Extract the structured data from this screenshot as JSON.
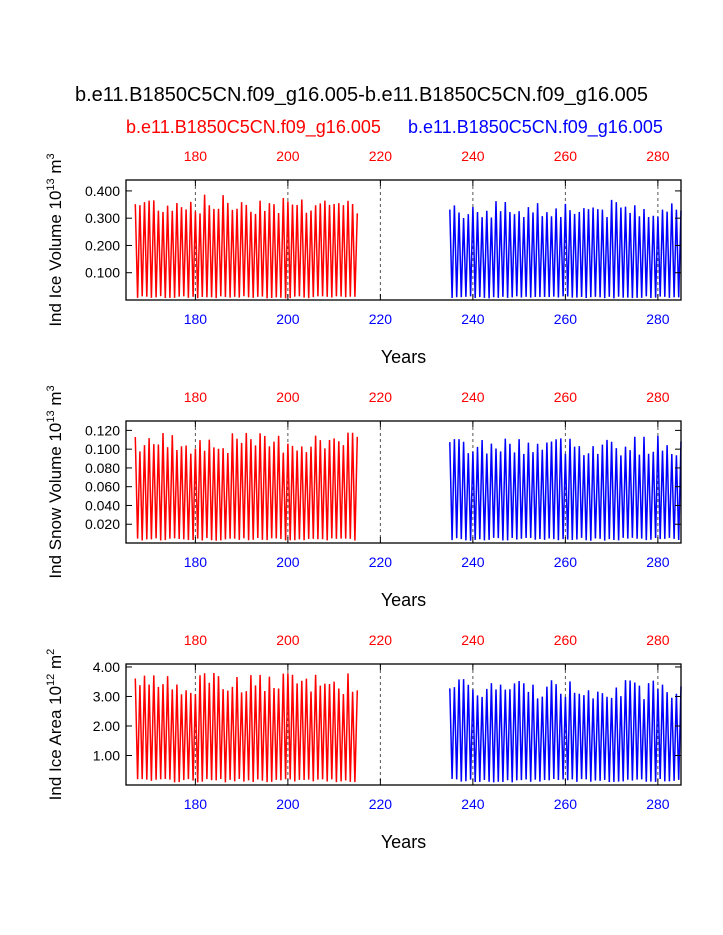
{
  "header": {
    "title": "b.e11.B1850C5CN.f09_g16.005-b.e11.B1850C5CN.f09_g16.005",
    "left_case": "b.e11.B1850C5CN.f09_g16.005",
    "right_case": "b.e11.B1850C5CN.f09_g16.005"
  },
  "colors": {
    "case1": "#ff0000",
    "case2": "#0000ff",
    "axis": "#000000",
    "grid": "#555555"
  },
  "chart_data": [
    {
      "type": "line",
      "title": "",
      "ylabel": "Ind Ice Volume 10^13 m^3",
      "ylabel_base": "Ind Ice Volume 10",
      "ylabel_exp": "13",
      "ylabel_unit": " m",
      "ylabel_unit_exp": "3",
      "xlabel": "Years",
      "xlim": [
        165,
        285
      ],
      "ylim": [
        0.0,
        0.44
      ],
      "y_ticks": [
        "0.100",
        "0.200",
        "0.300",
        "0.400"
      ],
      "x_ticks": [
        "180",
        "200",
        "220",
        "240",
        "260",
        "280"
      ],
      "series": [
        {
          "name": "b.e11.B1850C5CN.f09_g16.005",
          "color": "#ff0000",
          "x_start": 167,
          "x_end": 215,
          "min": 0.01,
          "max": 0.39
        },
        {
          "name": "b.e11.B1850C5CN.f09_g16.005",
          "color": "#0000ff",
          "x_start": 235,
          "x_end": 285,
          "min": 0.01,
          "max": 0.37
        }
      ]
    },
    {
      "type": "line",
      "title": "",
      "ylabel": "Ind Snow Volume 10^13 m^3",
      "ylabel_base": "Ind Snow Volume 10",
      "ylabel_exp": "13",
      "ylabel_unit": " m",
      "ylabel_unit_exp": "3",
      "xlabel": "Years",
      "xlim": [
        165,
        285
      ],
      "ylim": [
        0.0,
        0.13
      ],
      "y_ticks": [
        "0.020",
        "0.040",
        "0.060",
        "0.080",
        "0.100",
        "0.120"
      ],
      "x_ticks": [
        "180",
        "200",
        "220",
        "240",
        "260",
        "280"
      ],
      "series": [
        {
          "name": "b.e11.B1850C5CN.f09_g16.005",
          "color": "#ff0000",
          "x_start": 167,
          "x_end": 215,
          "min": 0.004,
          "max": 0.118
        },
        {
          "name": "b.e11.B1850C5CN.f09_g16.005",
          "color": "#0000ff",
          "x_start": 235,
          "x_end": 285,
          "min": 0.004,
          "max": 0.115
        }
      ]
    },
    {
      "type": "line",
      "title": "",
      "ylabel": "Ind Ice Area 10^12 m^2",
      "ylabel_base": "Ind Ice Area 10",
      "ylabel_exp": "12",
      "ylabel_unit": " m",
      "ylabel_unit_exp": "2",
      "xlabel": "Years",
      "xlim": [
        165,
        285
      ],
      "ylim": [
        0.0,
        4.1
      ],
      "y_ticks": [
        "1.00",
        "2.00",
        "3.00",
        "4.00"
      ],
      "x_ticks": [
        "180",
        "200",
        "220",
        "240",
        "260",
        "280"
      ],
      "series": [
        {
          "name": "b.e11.B1850C5CN.f09_g16.005",
          "color": "#ff0000",
          "x_start": 167,
          "x_end": 215,
          "min": 0.15,
          "max": 3.8
        },
        {
          "name": "b.e11.B1850C5CN.f09_g16.005",
          "color": "#0000ff",
          "x_start": 235,
          "x_end": 285,
          "min": 0.15,
          "max": 3.6
        }
      ]
    }
  ]
}
